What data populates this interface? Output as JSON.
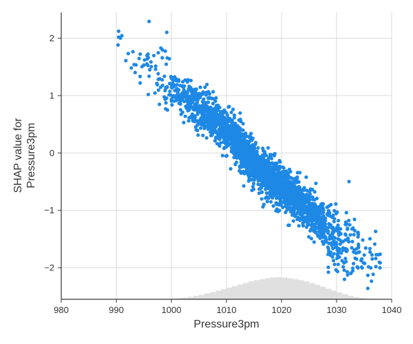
{
  "chart_data": {
    "type": "scatter",
    "title": "",
    "xlabel": "Pressure3pm",
    "ylabel_lines": [
      "SHAP value for",
      "Pressure3pm"
    ],
    "xlim": [
      980,
      1040
    ],
    "ylim": [
      -2.55,
      2.45
    ],
    "x_ticks": [
      980,
      990,
      1000,
      1010,
      1020,
      1030,
      1040
    ],
    "y_ticks": [
      -2,
      -1,
      0,
      1,
      2
    ],
    "grid": true,
    "point_color": "#1e88e5",
    "histogram_color": "#e0e0e0",
    "trend_points": [
      {
        "x": 982,
        "y": 1.6
      },
      {
        "x": 988,
        "y": 1.7
      },
      {
        "x": 992,
        "y": 1.85
      },
      {
        "x": 995,
        "y": 1.55
      },
      {
        "x": 1000,
        "y": 1.1
      },
      {
        "x": 1005,
        "y": 0.8
      },
      {
        "x": 1010,
        "y": 0.4
      },
      {
        "x": 1015,
        "y": -0.2
      },
      {
        "x": 1020,
        "y": -0.6
      },
      {
        "x": 1025,
        "y": -1.0
      },
      {
        "x": 1030,
        "y": -1.5
      },
      {
        "x": 1035,
        "y": -1.75
      },
      {
        "x": 1038,
        "y": -1.85
      }
    ],
    "histogram": {
      "bin_start": 981,
      "bin_width": 1,
      "relative_counts": [
        0,
        0,
        0,
        0,
        0,
        0,
        0,
        0,
        0,
        0,
        0,
        0,
        0,
        0,
        0,
        0,
        0,
        0.01,
        0.02,
        0.03,
        0.05,
        0.08,
        0.11,
        0.15,
        0.2,
        0.26,
        0.32,
        0.39,
        0.46,
        0.53,
        0.6,
        0.67,
        0.74,
        0.81,
        0.87,
        0.92,
        0.96,
        0.99,
        1.0,
        0.99,
        0.96,
        0.92,
        0.87,
        0.81,
        0.74,
        0.66,
        0.57,
        0.48,
        0.39,
        0.31,
        0.23,
        0.16,
        0.1,
        0.06,
        0.03,
        0.01,
        0
      ]
    }
  }
}
